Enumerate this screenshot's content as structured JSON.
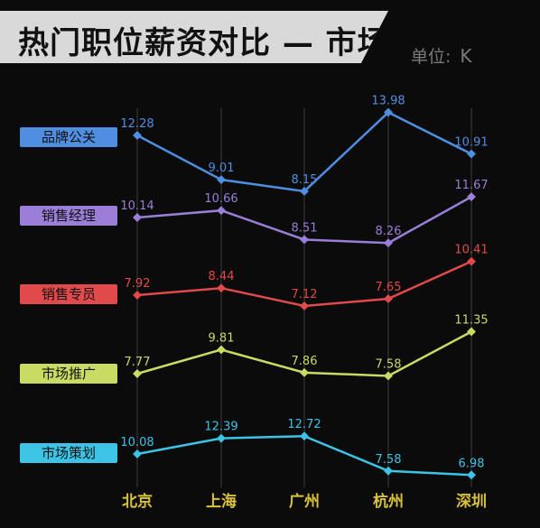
{
  "header": {
    "title": "热门职位薪资对比 — 市场",
    "unit_label": "单位:",
    "unit_value": "K"
  },
  "chart_data": {
    "type": "line",
    "categories": [
      "北京",
      "上海",
      "广州",
      "杭州",
      "深圳"
    ],
    "title": "热门职位薪资对比 — 市场",
    "xlabel": "",
    "ylabel": "",
    "grid": "vertical",
    "legend_placement": "left",
    "series": [
      {
        "name": "品牌公关",
        "values": [
          12.28,
          9.01,
          8.15,
          13.98,
          10.91
        ],
        "color": "#4f8ee0"
      },
      {
        "name": "销售经理",
        "values": [
          10.14,
          10.66,
          8.51,
          8.26,
          11.67
        ],
        "color": "#9b7ed8"
      },
      {
        "name": "销售专员",
        "values": [
          7.92,
          8.44,
          7.12,
          7.65,
          10.41
        ],
        "color": "#e04a4a"
      },
      {
        "name": "市场推广",
        "values": [
          7.77,
          9.81,
          7.86,
          7.58,
          11.35
        ],
        "color": "#c9db63"
      },
      {
        "name": "市场策划",
        "values": [
          10.08,
          12.39,
          12.72,
          7.58,
          6.98
        ],
        "color": "#3cc3e6"
      }
    ]
  }
}
